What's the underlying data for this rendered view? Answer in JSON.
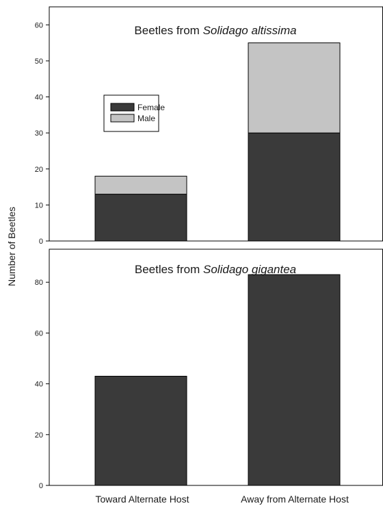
{
  "chart_data": [
    {
      "type": "bar",
      "stacked": true,
      "title_prefix": "Beetles from ",
      "title_species": "Solidago altissima",
      "categories": [
        "Toward Alternate Host",
        "Away from Alternate Host"
      ],
      "series": [
        {
          "name": "Female",
          "color": "#3a3a3a",
          "values": [
            13,
            30
          ]
        },
        {
          "name": "Male",
          "color": "#c4c4c4",
          "values": [
            5,
            25
          ]
        }
      ],
      "ylim": [
        0,
        65
      ],
      "yticks": [
        0,
        10,
        20,
        30,
        40,
        50,
        60
      ],
      "legend": "upper-left"
    },
    {
      "type": "bar",
      "stacked": true,
      "title_prefix": "Beetles from ",
      "title_species": "Solidago gigantea",
      "categories": [
        "Toward Alternate Host",
        "Away from Alternate Host"
      ],
      "series": [
        {
          "name": "Female",
          "color": "#3a3a3a",
          "values": [
            43,
            83
          ]
        },
        {
          "name": "Male",
          "color": "#c4c4c4",
          "values": [
            0,
            0
          ]
        }
      ],
      "ylim": [
        0,
        93
      ],
      "yticks": [
        0,
        20,
        40,
        60,
        80
      ]
    }
  ],
  "ylabel": "Number of Beetles",
  "xcategories": [
    "Toward Alternate Host",
    "Away from Alternate Host"
  ],
  "legend_labels": [
    "Female",
    "Male"
  ],
  "colors": {
    "female": "#3a3a3a",
    "male": "#c4c4c4",
    "axis": "#000000"
  }
}
